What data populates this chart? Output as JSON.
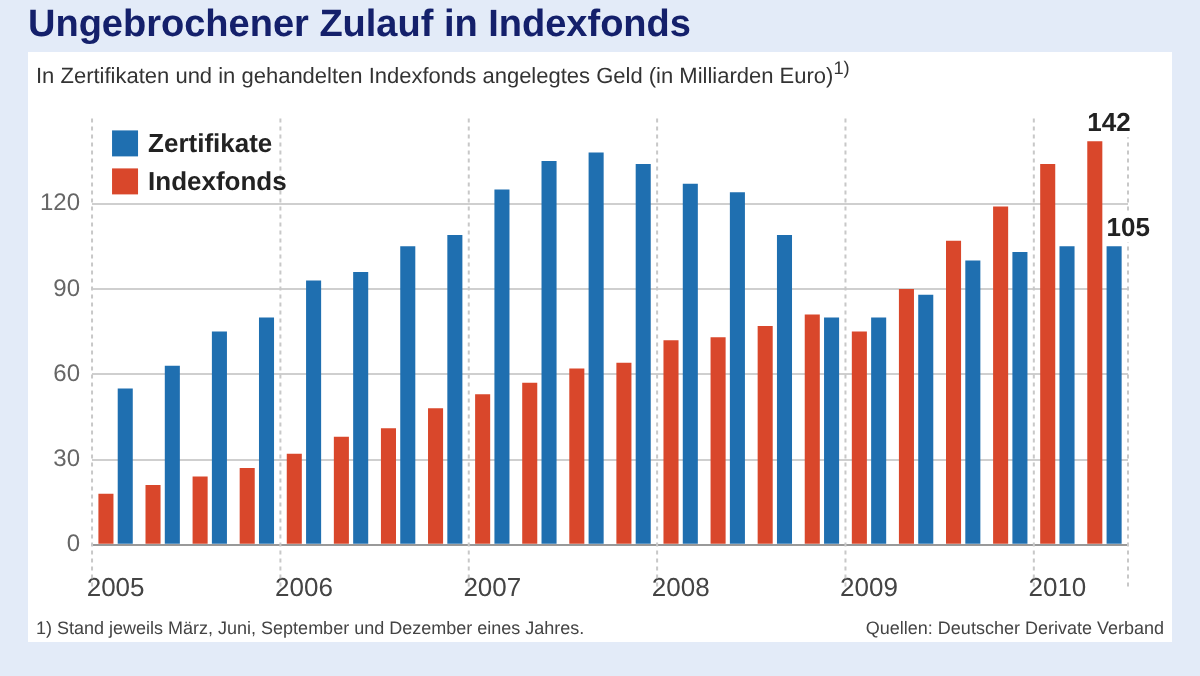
{
  "chart_data": {
    "type": "bar",
    "title": "Ungebrochener Zulauf in Indexfonds",
    "subtitle": "In Zertifikaten und in gehandelten Indexfonds angelegtes Geld (in Milliarden Euro)$^{1)}$",
    "categories": [
      "2005",
      null,
      null,
      null,
      "2006",
      null,
      null,
      null,
      "2007",
      null,
      null,
      null,
      "2008",
      null,
      null,
      null,
      "2009",
      null,
      null,
      null,
      "2010",
      null
    ],
    "series": [
      {
        "name": "Indexfonds",
        "color": "#d9472b",
        "values": [
          18,
          21,
          24,
          27,
          32,
          38,
          41,
          48,
          53,
          57,
          62,
          64,
          72,
          73,
          77,
          81,
          75,
          90,
          107,
          119,
          134,
          142
        ],
        "value_labels": [
          null,
          null,
          null,
          null,
          null,
          null,
          null,
          null,
          null,
          null,
          null,
          null,
          null,
          null,
          null,
          null,
          null,
          null,
          null,
          null,
          null,
          "142"
        ]
      },
      {
        "name": "Zertifikate",
        "color": "#1f6fb0",
        "values": [
          55,
          63,
          75,
          80,
          93,
          96,
          105,
          109,
          125,
          135,
          138,
          134,
          127,
          124,
          109,
          80,
          80,
          88,
          100,
          103,
          105,
          105
        ],
        "value_labels": [
          null,
          null,
          null,
          null,
          null,
          null,
          null,
          null,
          null,
          null,
          null,
          null,
          null,
          null,
          null,
          null,
          null,
          null,
          null,
          null,
          null,
          "105"
        ]
      }
    ],
    "ylim": [
      0,
      150
    ],
    "yticks": [
      0,
      30,
      60,
      90,
      120
    ],
    "grid": true,
    "legend": "top left",
    "annotations": [
      "1) Stand jeweils März, Juni, September und Dezember eines Jahres.",
      "Quellen: Deutscher Derivate Verband"
    ]
  }
}
